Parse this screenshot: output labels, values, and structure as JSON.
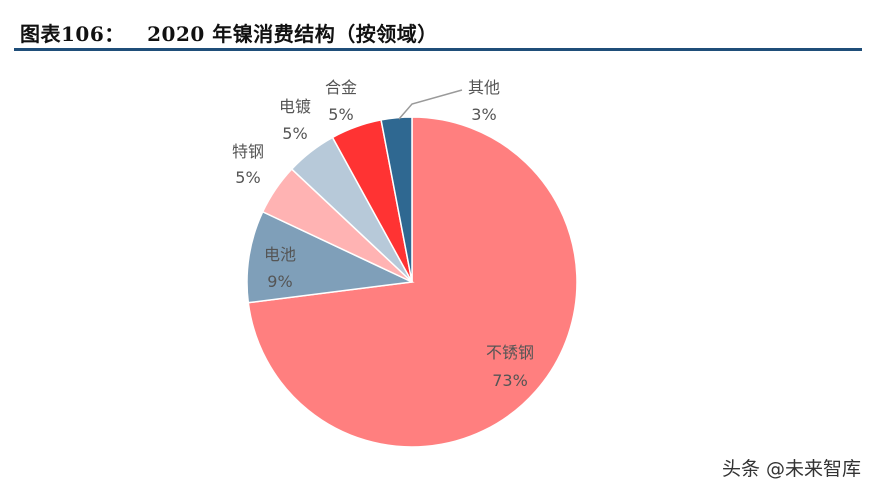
{
  "header": {
    "title": "图表106：   2020 年镍消费结构（按领域）"
  },
  "chart_data": {
    "type": "pie",
    "title": "2020 年镍消费结构（按领域）",
    "slices": [
      {
        "name": "不锈钢",
        "value": 73,
        "label": "73%",
        "color": "#ff7f7f"
      },
      {
        "name": "电池",
        "value": 9,
        "label": "9%",
        "color": "#7f9fb9"
      },
      {
        "name": "特钢",
        "value": 5,
        "label": "5%",
        "color": "#ffb3b3"
      },
      {
        "name": "电镀",
        "value": 5,
        "label": "5%",
        "color": "#b7c9d9"
      },
      {
        "name": "合金",
        "value": 5,
        "label": "5%",
        "color": "#ff3333"
      },
      {
        "name": "其他",
        "value": 3,
        "label": "3%",
        "color": "#2f6891"
      }
    ]
  },
  "watermark": "头条 @未来智库"
}
